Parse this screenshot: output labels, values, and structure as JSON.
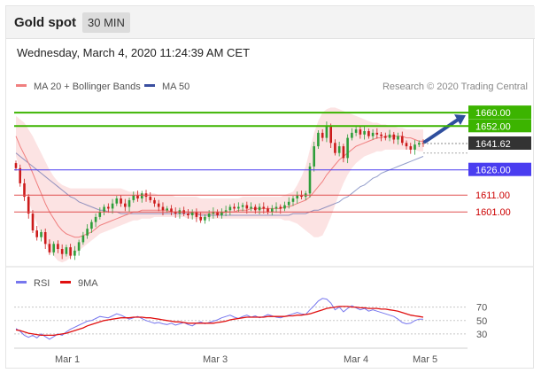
{
  "header": {
    "title": "Gold spot",
    "timeframe": "30 MIN"
  },
  "datetime": "Wednesday, March 4, 2020 11:24:39 AM CET",
  "credit": "Research © 2020 Trading Central",
  "colors": {
    "ma20": "#f07f7f",
    "bollinger": "#fbd9d9",
    "ma50": "#3a4fa0",
    "bull": "#2e9e3a",
    "bear": "#cc1b1b",
    "resistance": "#3cb400",
    "support": "#e05050",
    "pivot": "#4a3df0",
    "last": "#333333",
    "arrow": "#2f4f9e",
    "rsi": "#7777ee",
    "ma9": "#e01010"
  },
  "chart_data": [
    {
      "type": "candlestick",
      "title": "Gold spot",
      "legend": [
        "MA 20 + Bollinger Bands",
        "MA 50"
      ],
      "x_ticks": [
        "Mar 1",
        "Mar 3",
        "Mar 4",
        "Mar 5"
      ],
      "ylim": [
        1569,
        1669
      ],
      "levels": [
        {
          "label": "1660.00",
          "value": 1660.0,
          "kind": "resistance"
        },
        {
          "label": "1652.00",
          "value": 1652.0,
          "kind": "resistance"
        },
        {
          "label": "1641.62",
          "value": 1641.62,
          "kind": "last"
        },
        {
          "label": "1626.00",
          "value": 1626.0,
          "kind": "pivot"
        },
        {
          "label": "1611.00",
          "value": 1611.0,
          "kind": "support"
        },
        {
          "label": "1601.00",
          "value": 1601.0,
          "kind": "support"
        }
      ],
      "close": [
        1627,
        1618,
        1610,
        1600,
        1590,
        1586,
        1589,
        1582,
        1577,
        1582,
        1579,
        1576,
        1580,
        1575,
        1578,
        1583,
        1587,
        1591,
        1595,
        1598,
        1601,
        1604,
        1603,
        1606,
        1609,
        1606,
        1604,
        1608,
        1611,
        1609,
        1612,
        1610,
        1608,
        1606,
        1604,
        1602,
        1603,
        1601,
        1600,
        1602,
        1600,
        1599,
        1601,
        1598,
        1596,
        1598,
        1600,
        1601,
        1599,
        1601,
        1602,
        1604,
        1603,
        1604,
        1605,
        1603,
        1604,
        1602,
        1604,
        1603,
        1601,
        1603,
        1604,
        1603,
        1605,
        1607,
        1609,
        1611,
        1610,
        1612,
        1628,
        1640,
        1648,
        1645,
        1652,
        1642,
        1636,
        1640,
        1633,
        1645,
        1648,
        1650,
        1647,
        1649,
        1646,
        1648,
        1647,
        1646,
        1645,
        1647,
        1644,
        1646,
        1642,
        1640,
        1638,
        1641,
        1642,
        1641.62
      ],
      "ma20": [
        1646,
        1640,
        1635,
        1630,
        1624,
        1618,
        1612,
        1606,
        1601,
        1597,
        1593,
        1590,
        1588,
        1587,
        1586,
        1586,
        1587,
        1588,
        1589,
        1591,
        1593,
        1594,
        1595,
        1596,
        1597,
        1598,
        1599,
        1600,
        1601,
        1601,
        1602,
        1602,
        1602,
        1602,
        1602,
        1602,
        1602,
        1601,
        1601,
        1601,
        1601,
        1601,
        1600,
        1600,
        1600,
        1600,
        1600,
        1600,
        1600,
        1600,
        1601,
        1601,
        1601,
        1602,
        1602,
        1602,
        1603,
        1603,
        1603,
        1603,
        1603,
        1603,
        1603,
        1603,
        1604,
        1604,
        1605,
        1606,
        1607,
        1608,
        1610,
        1613,
        1616,
        1619,
        1623,
        1626,
        1629,
        1632,
        1634,
        1636,
        1638,
        1640,
        1641,
        1642,
        1643,
        1644,
        1645,
        1645,
        1646,
        1646,
        1646,
        1646,
        1646,
        1645,
        1645,
        1644,
        1643,
        1643
      ],
      "ma50": [
        1636,
        1634,
        1632,
        1630,
        1628,
        1626,
        1624,
        1622,
        1620,
        1618,
        1616,
        1614,
        1612,
        1610,
        1609,
        1607,
        1606,
        1605,
        1604,
        1603,
        1602,
        1602,
        1601,
        1601,
        1601,
        1600,
        1600,
        1600,
        1600,
        1600,
        1600,
        1600,
        1600,
        1600,
        1600,
        1600,
        1600,
        1600,
        1600,
        1600,
        1600,
        1600,
        1600,
        1600,
        1599,
        1599,
        1599,
        1599,
        1599,
        1599,
        1599,
        1599,
        1599,
        1599,
        1599,
        1599,
        1599,
        1599,
        1599,
        1599,
        1599,
        1599,
        1599,
        1599,
        1599,
        1599,
        1600,
        1600,
        1600,
        1600,
        1601,
        1602,
        1602,
        1603,
        1604,
        1605,
        1606,
        1607,
        1609,
        1610,
        1612,
        1614,
        1616,
        1617,
        1619,
        1621,
        1622,
        1624,
        1625,
        1626,
        1627,
        1628,
        1629,
        1630,
        1631,
        1632,
        1633,
        1634
      ],
      "bb_upper": [
        1658,
        1656,
        1654,
        1650,
        1646,
        1641,
        1636,
        1631,
        1626,
        1622,
        1619,
        1617,
        1616,
        1615,
        1615,
        1615,
        1615,
        1615,
        1615,
        1615,
        1615,
        1615,
        1615,
        1615,
        1615,
        1615,
        1614,
        1613,
        1613,
        1613,
        1612,
        1612,
        1612,
        1612,
        1611,
        1611,
        1611,
        1611,
        1610,
        1610,
        1610,
        1610,
        1610,
        1610,
        1609,
        1609,
        1609,
        1609,
        1609,
        1609,
        1609,
        1609,
        1609,
        1609,
        1610,
        1610,
        1610,
        1610,
        1610,
        1610,
        1610,
        1610,
        1610,
        1610,
        1611,
        1612,
        1613,
        1617,
        1622,
        1628,
        1638,
        1648,
        1655,
        1660,
        1662,
        1663,
        1663,
        1662,
        1661,
        1660,
        1659,
        1658,
        1657,
        1656,
        1655,
        1654,
        1654,
        1653,
        1653,
        1652,
        1652,
        1651,
        1651,
        1650,
        1650,
        1650,
        1650,
        1650
      ],
      "bb_lower": [
        1634,
        1626,
        1616,
        1608,
        1600,
        1594,
        1588,
        1583,
        1578,
        1575,
        1572,
        1571,
        1572,
        1574,
        1576,
        1578,
        1580,
        1582,
        1584,
        1586,
        1588,
        1589,
        1590,
        1591,
        1592,
        1593,
        1594,
        1595,
        1596,
        1596,
        1597,
        1597,
        1597,
        1598,
        1598,
        1598,
        1598,
        1598,
        1598,
        1598,
        1598,
        1597,
        1597,
        1597,
        1597,
        1597,
        1597,
        1597,
        1597,
        1597,
        1597,
        1597,
        1597,
        1597,
        1597,
        1597,
        1597,
        1597,
        1597,
        1597,
        1597,
        1597,
        1597,
        1597,
        1596,
        1596,
        1595,
        1594,
        1592,
        1590,
        1588,
        1586,
        1586,
        1587,
        1592,
        1598,
        1605,
        1612,
        1618,
        1623,
        1627,
        1630,
        1632,
        1634,
        1635,
        1636,
        1637,
        1637,
        1638,
        1638,
        1638,
        1638,
        1638,
        1638,
        1638,
        1638,
        1637,
        1637
      ]
    },
    {
      "type": "line",
      "legend": [
        "RSI",
        "9MA"
      ],
      "y_ticks": [
        "70",
        "50",
        "30"
      ],
      "ylim": [
        10,
        92
      ],
      "series": [
        {
          "name": "RSI",
          "values": [
            38,
            34,
            28,
            25,
            28,
            24,
            30,
            26,
            22,
            26,
            30,
            28,
            33,
            37,
            40,
            43,
            46,
            49,
            50,
            53,
            56,
            55,
            54,
            57,
            60,
            58,
            55,
            52,
            54,
            56,
            53,
            50,
            48,
            46,
            47,
            45,
            44,
            46,
            43,
            45,
            47,
            44,
            42,
            46,
            48,
            45,
            47,
            49,
            51,
            54,
            56,
            58,
            55,
            53,
            56,
            58,
            55,
            57,
            54,
            56,
            59,
            57,
            55,
            54,
            56,
            58,
            60,
            62,
            60,
            59,
            66,
            72,
            79,
            83,
            82,
            76,
            66,
            70,
            63,
            68,
            72,
            69,
            66,
            68,
            64,
            66,
            64,
            62,
            60,
            58,
            56,
            52,
            47,
            45,
            46,
            50,
            52,
            52
          ]
        },
        {
          "name": "9MA",
          "values": [
            36,
            35,
            33,
            31,
            30,
            29,
            28,
            28,
            28,
            28,
            29,
            30,
            31,
            33,
            35,
            37,
            39,
            42,
            44,
            46,
            48,
            50,
            51,
            52,
            53,
            54,
            54,
            54,
            55,
            55,
            55,
            54,
            54,
            53,
            52,
            51,
            50,
            49,
            48,
            48,
            47,
            46,
            46,
            46,
            46,
            46,
            46,
            46,
            47,
            48,
            49,
            51,
            52,
            53,
            54,
            55,
            55,
            55,
            55,
            55,
            56,
            56,
            56,
            56,
            56,
            57,
            57,
            58,
            58,
            59,
            60,
            62,
            64,
            66,
            68,
            69,
            70,
            71,
            71,
            71,
            70,
            70,
            69,
            69,
            68,
            68,
            68,
            67,
            67,
            66,
            65,
            64,
            62,
            60,
            58,
            57,
            56,
            55
          ]
        }
      ]
    }
  ]
}
